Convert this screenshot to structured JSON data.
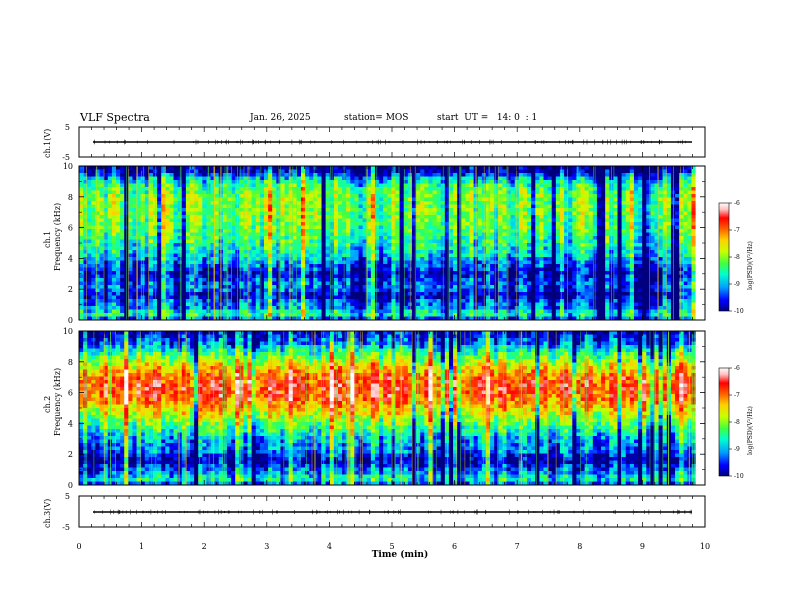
{
  "header": {
    "title": "VLF Spectra",
    "date": "Jan. 26, 2025",
    "station": "station= MOS",
    "start": "start  UT =   14: 0  : 1"
  },
  "chart_data": [
    {
      "type": "line",
      "name_label": "ch.1(V)",
      "ylabel": "ch.1(V)",
      "ylim": [
        -5,
        5
      ],
      "yticks": [
        "5",
        "-5"
      ],
      "x": [
        0,
        10
      ],
      "values": [
        0,
        0
      ],
      "xlim": [
        0,
        10
      ]
    },
    {
      "type": "heatmap",
      "ylabel_top": "ch.1",
      "ylabel": "Frequency (kHz)",
      "ylim": [
        0,
        10
      ],
      "yticks": [
        "0",
        "2",
        "4",
        "6",
        "8",
        "10"
      ],
      "xlim": [
        0,
        9.85
      ],
      "colorbar": {
        "label": "log(PSD)(V²/Hz)",
        "ticks": [
          "-6",
          "-7",
          "-8",
          "-9",
          "-10"
        ],
        "range": [
          -10,
          -6
        ]
      },
      "band_profile": [
        {
          "f": 0.0,
          "level": -9.6
        },
        {
          "f": 0.4,
          "level": -8.6
        },
        {
          "f": 0.8,
          "level": -9.3
        },
        {
          "f": 1.2,
          "level": -9.4
        },
        {
          "f": 1.6,
          "level": -9.9
        },
        {
          "f": 2.0,
          "level": -9.4
        },
        {
          "f": 2.6,
          "level": -9.5
        },
        {
          "f": 3.0,
          "level": -9.8
        },
        {
          "f": 3.6,
          "level": -9.4
        },
        {
          "f": 4.2,
          "level": -9.0
        },
        {
          "f": 5.0,
          "level": -8.7
        },
        {
          "f": 6.0,
          "level": -8.4
        },
        {
          "f": 7.0,
          "level": -8.3
        },
        {
          "f": 8.0,
          "level": -8.3
        },
        {
          "f": 8.6,
          "level": -8.5
        },
        {
          "f": 9.2,
          "level": -9.1
        },
        {
          "f": 9.6,
          "level": -9.9
        },
        {
          "f": 10.0,
          "level": -10.0
        }
      ]
    },
    {
      "type": "heatmap",
      "ylabel_top": "ch.2",
      "ylabel": "Frequency (kHz)",
      "ylim": [
        0,
        10
      ],
      "yticks": [
        "0",
        "2",
        "4",
        "6",
        "8",
        "10"
      ],
      "xlim": [
        0,
        9.85
      ],
      "colorbar": {
        "label": "log(PSD)(V²/Hz)",
        "ticks": [
          "-6",
          "-7",
          "-8",
          "-9",
          "-10"
        ],
        "range": [
          -10,
          -6
        ]
      },
      "band_profile": [
        {
          "f": 0.0,
          "level": -9.5
        },
        {
          "f": 0.4,
          "level": -8.7
        },
        {
          "f": 0.8,
          "level": -9.2
        },
        {
          "f": 1.2,
          "level": -9.5
        },
        {
          "f": 1.6,
          "level": -9.9
        },
        {
          "f": 2.2,
          "level": -9.3
        },
        {
          "f": 3.0,
          "level": -9.1
        },
        {
          "f": 3.6,
          "level": -8.6
        },
        {
          "f": 4.2,
          "level": -8.2
        },
        {
          "f": 5.0,
          "level": -7.6
        },
        {
          "f": 5.6,
          "level": -7.1
        },
        {
          "f": 6.2,
          "level": -6.9
        },
        {
          "f": 6.8,
          "level": -7.0
        },
        {
          "f": 7.4,
          "level": -7.4
        },
        {
          "f": 8.0,
          "level": -8.0
        },
        {
          "f": 8.6,
          "level": -8.6
        },
        {
          "f": 9.2,
          "level": -9.3
        },
        {
          "f": 10.0,
          "level": -9.8
        }
      ]
    },
    {
      "type": "line",
      "name_label": "ch.3(V)",
      "ylabel": "ch.3(V)",
      "ylim": [
        -5,
        5
      ],
      "yticks": [
        "5",
        "-5"
      ],
      "x": [
        0,
        10
      ],
      "values": [
        0,
        0
      ],
      "xlim": [
        0,
        10
      ]
    }
  ],
  "xaxis": {
    "label": "Time (min)",
    "range": [
      0,
      10
    ],
    "ticks": [
      "0",
      "1",
      "2",
      "3",
      "4",
      "5",
      "6",
      "7",
      "8",
      "9",
      "10"
    ]
  },
  "colors": {
    "colormap": [
      "#00007f",
      "#0000ff",
      "#00a0ff",
      "#00ffd0",
      "#40ff40",
      "#c8ff00",
      "#ffd000",
      "#ff6000",
      "#ff0000",
      "#ffc0c0",
      "#ffffff"
    ]
  }
}
